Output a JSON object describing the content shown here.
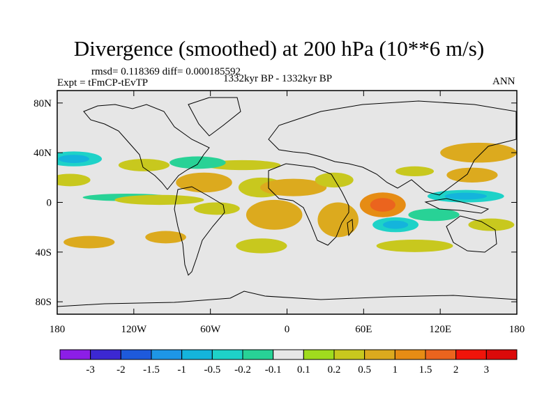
{
  "chart_data": {
    "type": "heatmap",
    "title": "Divergence (smoothed) at 200 hPa (10**6 m/s)",
    "stats_text": "rmsd= 0.118369 diff= 0.000185592",
    "experiment_text": "Expt = tFmCP-tEvTP",
    "period_text": "1332kyr BP - 1332kyr BP",
    "season_text": "ANN",
    "x_ticks": [
      {
        "lon": -180,
        "label": "180"
      },
      {
        "lon": -120,
        "label": "120W"
      },
      {
        "lon": -60,
        "label": "60W"
      },
      {
        "lon": 0,
        "label": "0"
      },
      {
        "lon": 60,
        "label": "60E"
      },
      {
        "lon": 120,
        "label": "120E"
      },
      {
        "lon": 180,
        "label": "180"
      }
    ],
    "y_ticks": [
      {
        "lat": 80,
        "label": "80N"
      },
      {
        "lat": 40,
        "label": "40N"
      },
      {
        "lat": 0,
        "label": "0"
      },
      {
        "lat": -40,
        "label": "40S"
      },
      {
        "lat": -80,
        "label": "80S"
      }
    ],
    "xlim": [
      -180,
      180
    ],
    "ylim": [
      -90,
      90
    ],
    "colorbar": {
      "levels": [
        "-3",
        "-2",
        "-1.5",
        "-1",
        "-0.5",
        "-0.2",
        "-0.1",
        "0.1",
        "0.2",
        "0.5",
        "1",
        "1.5",
        "2",
        "3"
      ],
      "colors": [
        "#8c1ee6",
        "#3c28d2",
        "#1e5adc",
        "#1e96e6",
        "#14b4dc",
        "#1ed2c8",
        "#28d296",
        "#e6e6e6",
        "#a0dc1e",
        "#c8c81e",
        "#dcaa1e",
        "#e68c14",
        "#eb641e",
        "#f0140a",
        "#dc0a0a"
      ]
    },
    "regions": [
      {
        "lon": -167,
        "lat": 35,
        "w": 22,
        "h": 6,
        "level": -0.5
      },
      {
        "lon": -112,
        "lat": 30,
        "w": 20,
        "h": 5,
        "level": 0.2
      },
      {
        "lon": -35,
        "lat": 30,
        "w": 30,
        "h": 4,
        "level": 0.2
      },
      {
        "lon": -70,
        "lat": 32,
        "w": 22,
        "h": 5,
        "level": -0.2
      },
      {
        "lon": -170,
        "lat": 18,
        "w": 16,
        "h": 5,
        "level": 0.2
      },
      {
        "lon": -65,
        "lat": 16,
        "w": 22,
        "h": 8,
        "level": 0.5
      },
      {
        "lon": -20,
        "lat": 12,
        "w": 18,
        "h": 8,
        "level": 0.2
      },
      {
        "lon": 5,
        "lat": 12,
        "w": 26,
        "h": 7,
        "level": 0.5
      },
      {
        "lon": 37,
        "lat": 18,
        "w": 15,
        "h": 6,
        "level": 0.2
      },
      {
        "lon": -125,
        "lat": 4,
        "w": 35,
        "h": 3,
        "level": -0.2
      },
      {
        "lon": -100,
        "lat": 2,
        "w": 35,
        "h": 4,
        "level": 0.2
      },
      {
        "lon": -55,
        "lat": -5,
        "w": 18,
        "h": 5,
        "level": 0.2
      },
      {
        "lon": -10,
        "lat": -10,
        "w": 22,
        "h": 12,
        "level": 0.5
      },
      {
        "lon": 40,
        "lat": -14,
        "w": 16,
        "h": 14,
        "level": 0.5
      },
      {
        "lon": 75,
        "lat": -2,
        "w": 18,
        "h": 10,
        "level": 1.0
      },
      {
        "lon": 85,
        "lat": -18,
        "w": 18,
        "h": 6,
        "level": -0.5
      },
      {
        "lon": 115,
        "lat": -10,
        "w": 20,
        "h": 5,
        "level": -0.2
      },
      {
        "lon": 150,
        "lat": 40,
        "w": 30,
        "h": 8,
        "level": 0.5
      },
      {
        "lon": 145,
        "lat": 22,
        "w": 20,
        "h": 6,
        "level": 0.5
      },
      {
        "lon": 140,
        "lat": 5,
        "w": 30,
        "h": 5,
        "level": -0.5
      },
      {
        "lon": 100,
        "lat": 25,
        "w": 15,
        "h": 4,
        "level": 0.2
      },
      {
        "lon": -155,
        "lat": -32,
        "w": 20,
        "h": 5,
        "level": 0.5
      },
      {
        "lon": -95,
        "lat": -28,
        "w": 16,
        "h": 5,
        "level": 0.5
      },
      {
        "lon": -20,
        "lat": -35,
        "w": 20,
        "h": 6,
        "level": 0.2
      },
      {
        "lon": 100,
        "lat": -35,
        "w": 30,
        "h": 5,
        "level": 0.2
      },
      {
        "lon": 160,
        "lat": -18,
        "w": 18,
        "h": 5,
        "level": 0.2
      }
    ]
  }
}
